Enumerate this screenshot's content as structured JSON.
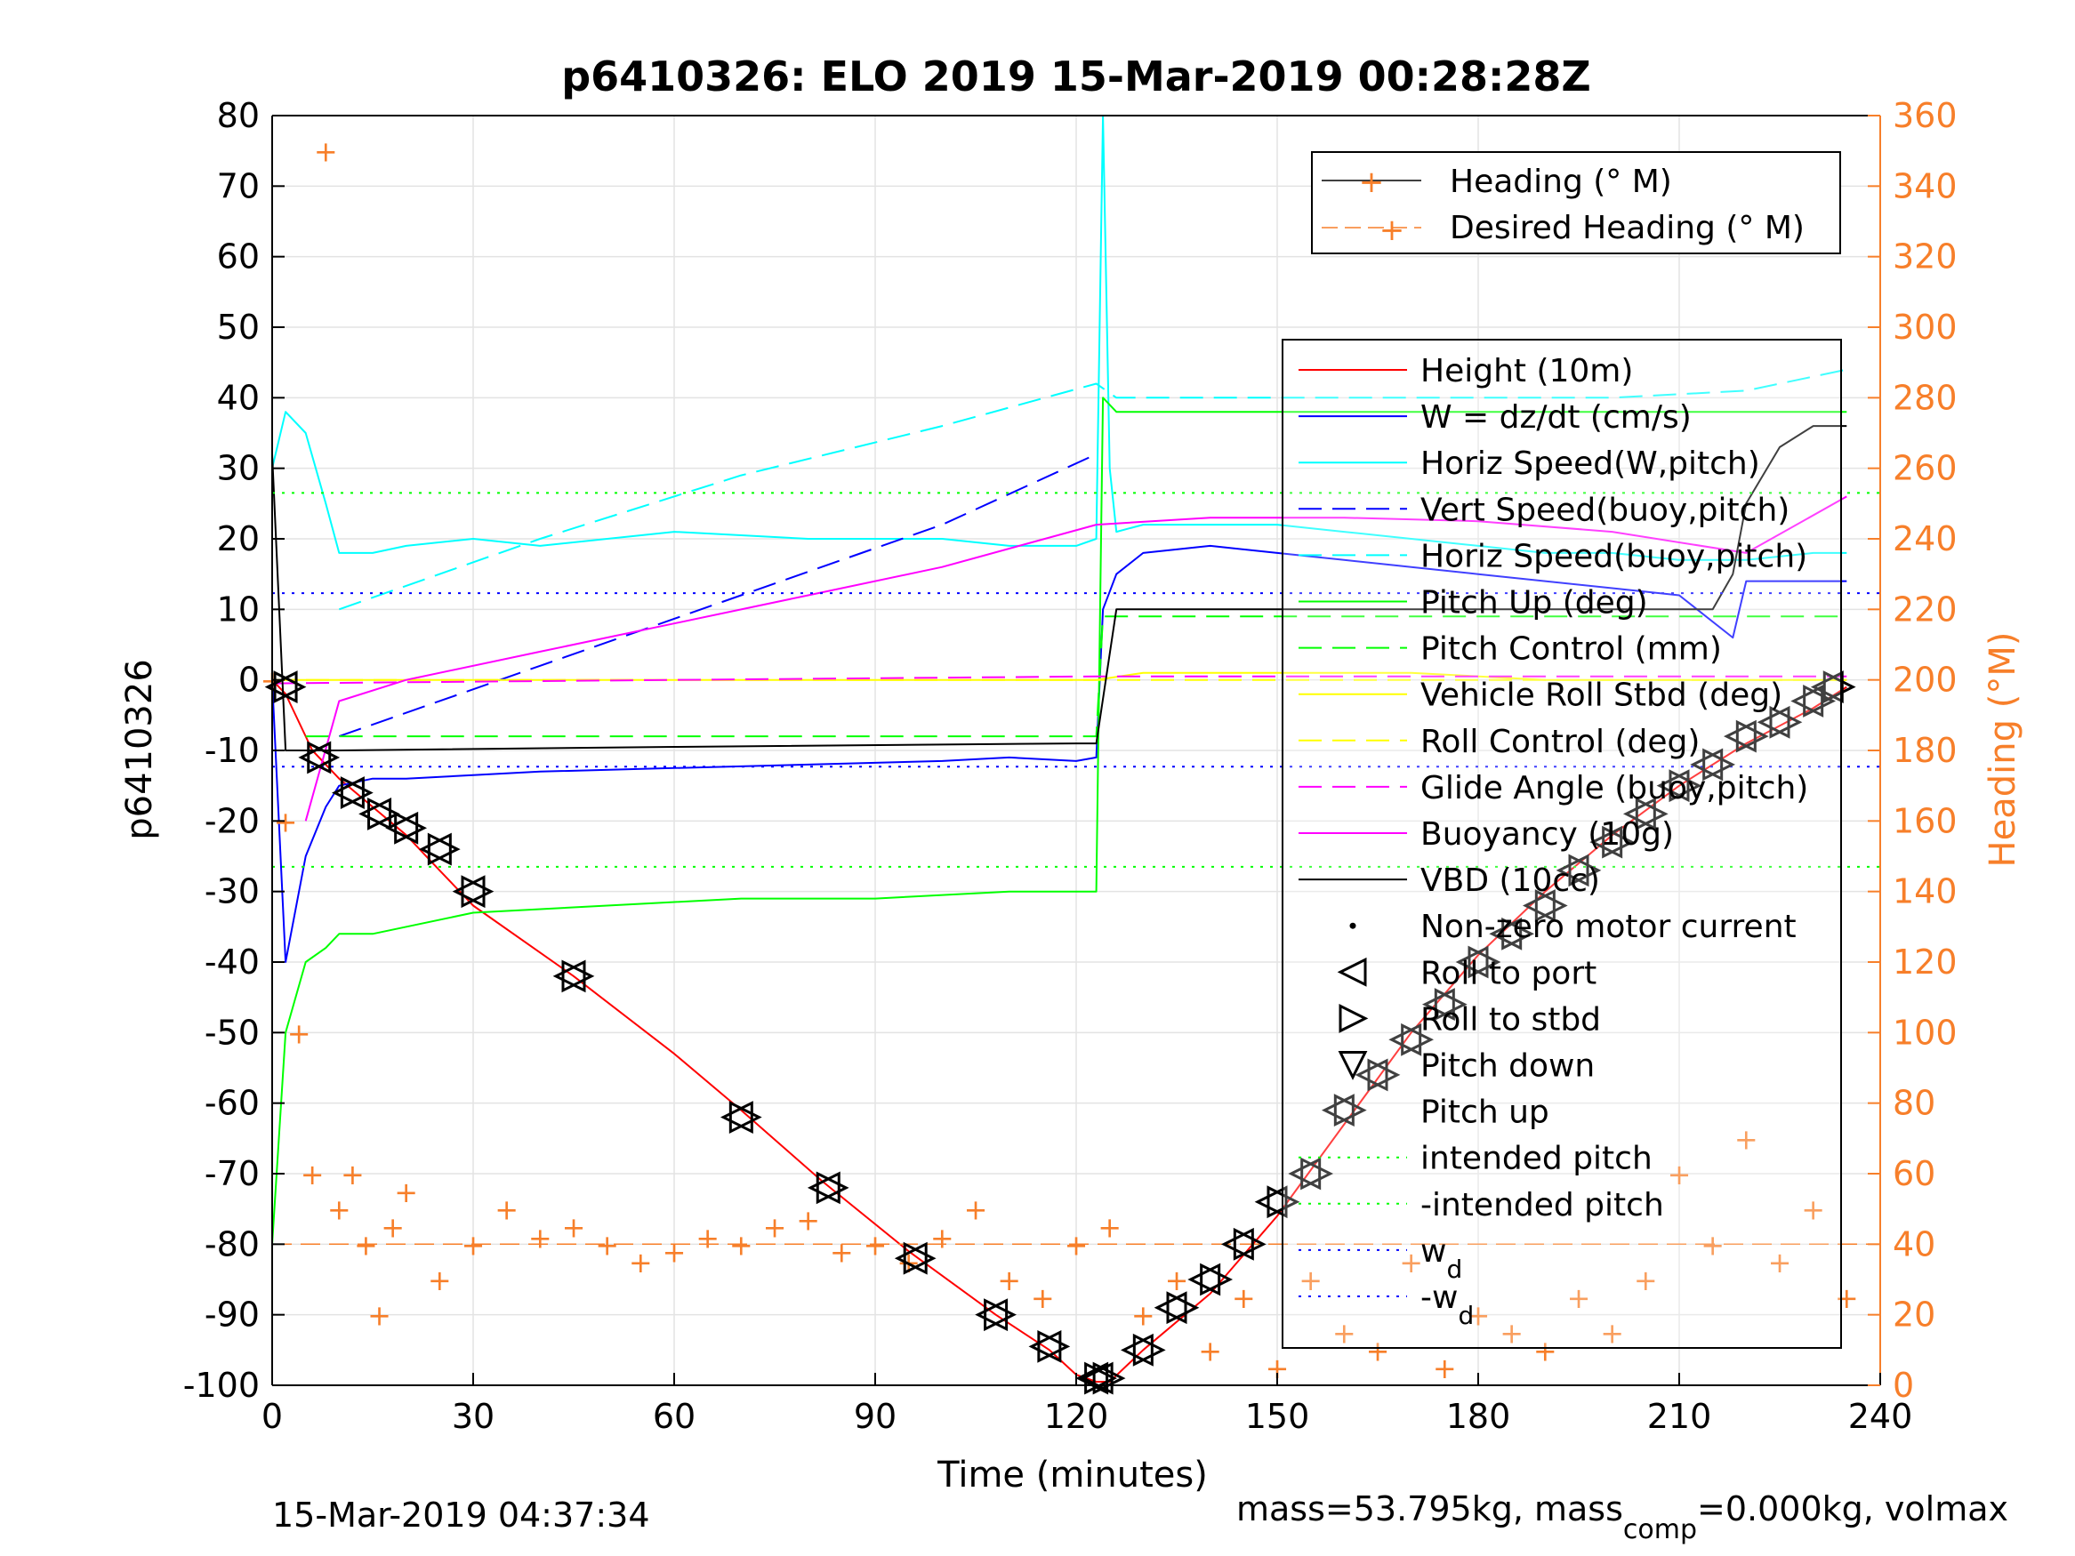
{
  "chart_data": {
    "type": "line",
    "title": "p6410326: ELO 2019 15-Mar-2019 00:28:28Z",
    "xlabel": "Time (minutes)",
    "ylabel": "p6410326",
    "ylabel_right": "Heading (°M)",
    "xlim": [
      0,
      240
    ],
    "ylim": [
      -100,
      80
    ],
    "ylim_right": [
      0,
      360
    ],
    "xticks": [
      "0",
      "30",
      "60",
      "90",
      "120",
      "150",
      "180",
      "210",
      "240"
    ],
    "yticks": [
      "80",
      "70",
      "60",
      "50",
      "40",
      "30",
      "20",
      "10",
      "0",
      "-10",
      "-20",
      "-30",
      "-40",
      "-50",
      "-60",
      "-70",
      "-80",
      "-90",
      "-100"
    ],
    "yticks_right": [
      "360",
      "340",
      "320",
      "300",
      "280",
      "260",
      "240",
      "220",
      "200",
      "180",
      "160",
      "140",
      "120",
      "100",
      "80",
      "60",
      "40",
      "20",
      "0"
    ],
    "grid": true,
    "colors": {
      "height": "#ff0000",
      "w": "#0000ff",
      "horiz_w": "#00ffff",
      "vert_buoy": "#0000ff",
      "horiz_buoy": "#00ffff",
      "pitch": "#00ff00",
      "pitch_control": "#00ff00",
      "roll": "#ffff00",
      "roll_control": "#ffff00",
      "glide": "#ff00ff",
      "buoyancy": "#ff00ff",
      "vbd": "#000000",
      "heading": "#f77f2a"
    },
    "legend_heading": {
      "placement": "top-right",
      "entries": [
        "Heading (° M)",
        "Desired Heading (° M)"
      ]
    },
    "legend_main": {
      "placement": "right",
      "entries": [
        "Height (10m)",
        "W = dz/dt (cm/s)",
        "Horiz Speed(W,pitch)",
        "Vert Speed(buoy,pitch)",
        "Horiz Speed(buoy,pitch)",
        "Pitch Up (deg)",
        "Pitch Control (mm)",
        "Vehicle Roll Stbd (deg)",
        "Roll Control (deg)",
        "Glide Angle (buoy,pitch)",
        "Buoyancy (10g)",
        "VBD (10cc)",
        "Non-zero motor current",
        "Roll to port",
        "Roll to stbd",
        "Pitch down",
        "Pitch up",
        "intended pitch",
        "-intended pitch",
        "w",
        "-w"
      ],
      "subscript": "d"
    },
    "series": [
      {
        "name": "Height (10m)",
        "x": [
          0,
          2,
          6,
          10,
          15,
          20,
          25,
          30,
          45,
          60,
          70,
          82,
          95,
          108,
          116,
          120,
          123,
          125,
          130,
          140,
          150,
          160,
          170,
          180,
          190,
          200,
          210,
          220,
          230,
          235
        ],
        "values": [
          0,
          -2,
          -10,
          -14,
          -18,
          -22,
          -27,
          -32,
          -42,
          -53,
          -61,
          -71,
          -81,
          -90,
          -95,
          -98.5,
          -99.5,
          -99.5,
          -95,
          -87,
          -76,
          -63,
          -50,
          -39,
          -30,
          -22,
          -15,
          -9,
          -4,
          -1
        ]
      },
      {
        "name": "W = dz/dt (cm/s)",
        "x": [
          0,
          2,
          5,
          8,
          10,
          15,
          20,
          30,
          40,
          60,
          80,
          100,
          110,
          120,
          123,
          124,
          126,
          130,
          140,
          150,
          160,
          170,
          180,
          190,
          200,
          210,
          218,
          220,
          230,
          235
        ],
        "values": [
          0,
          -40,
          -25,
          -18,
          -15,
          -14,
          -14,
          -13.5,
          -13,
          -12.5,
          -12,
          -11.5,
          -11,
          -11.5,
          -11,
          10,
          15,
          18,
          19,
          18,
          17,
          16,
          15,
          14,
          13,
          12,
          6,
          14,
          14,
          14
        ]
      },
      {
        "name": "Horiz Speed(W,pitch)",
        "x": [
          0,
          2,
          5,
          8,
          10,
          15,
          20,
          30,
          40,
          60,
          80,
          100,
          110,
          120,
          123,
          124,
          125,
          126,
          130,
          140,
          150,
          160,
          170,
          180,
          190,
          200,
          210,
          220,
          230,
          235
        ],
        "values": [
          30,
          38,
          35,
          25,
          18,
          18,
          19,
          20,
          19,
          21,
          20,
          20,
          19,
          19,
          20,
          80,
          30,
          21,
          22,
          22,
          22,
          21,
          20,
          19,
          18,
          18,
          17,
          17,
          18,
          18
        ]
      },
      {
        "name": "Vert Speed(buoy,pitch)",
        "x": [
          10,
          40,
          70,
          100,
          123
        ],
        "values": [
          -8,
          2,
          12,
          22,
          32
        ]
      },
      {
        "name": "Horiz Speed(buoy,pitch)",
        "x": [
          10,
          40,
          70,
          100,
          123,
          126,
          140,
          160,
          180,
          200,
          220,
          235
        ],
        "values": [
          10,
          20,
          29,
          36,
          42,
          40,
          40,
          40,
          40,
          40,
          41,
          44
        ]
      },
      {
        "name": "Pitch Up (deg)",
        "x": [
          0,
          2,
          5,
          8,
          10,
          15,
          30,
          50,
          70,
          90,
          110,
          120,
          123,
          124,
          126,
          140,
          160,
          180,
          200,
          220,
          235
        ],
        "values": [
          -80,
          -50,
          -40,
          -38,
          -36,
          -36,
          -33,
          -32,
          -31,
          -31,
          -30,
          -30,
          -30,
          40,
          38,
          38,
          38,
          38,
          38,
          38,
          38
        ]
      },
      {
        "name": "Pitch Control (mm)",
        "x": [
          5,
          40,
          80,
          123,
          124,
          235
        ],
        "values": [
          -8,
          -8,
          -8,
          -8,
          9,
          9
        ]
      },
      {
        "name": "Vehicle Roll Stbd (deg)",
        "x": [
          0,
          10,
          20,
          40,
          60,
          80,
          100,
          120,
          123,
          130,
          150,
          170,
          190,
          210,
          230,
          235
        ],
        "values": [
          0,
          0,
          0,
          0,
          0,
          0,
          0,
          0,
          0,
          1,
          1,
          1,
          0,
          0,
          0,
          0
        ]
      },
      {
        "name": "Roll Control (deg)",
        "x": [
          0,
          235
        ],
        "values": [
          0,
          0
        ]
      },
      {
        "name": "Glide Angle (buoy,pitch)",
        "x": [
          0,
          60,
          123,
          235
        ],
        "values": [
          -0.5,
          0,
          0.5,
          0.5
        ]
      },
      {
        "name": "Buoyancy (10g)",
        "x": [
          5,
          10,
          20,
          40,
          60,
          80,
          100,
          123,
          140,
          160,
          180,
          200,
          220,
          235
        ],
        "values": [
          -20,
          -3,
          0,
          4,
          8,
          12,
          16,
          22,
          23,
          23,
          22.5,
          21,
          18,
          26
        ]
      },
      {
        "name": "VBD (10cc)",
        "x": [
          0,
          2,
          10,
          60,
          120,
          123,
          126,
          180,
          215,
          218,
          220,
          225,
          230,
          235
        ],
        "values": [
          32,
          -10,
          -10,
          -9.5,
          -9,
          -9,
          10,
          10,
          10,
          15,
          25,
          33,
          36,
          36
        ]
      },
      {
        "name": "intended pitch",
        "x": [
          0,
          240
        ],
        "values": [
          26.5,
          26.5
        ]
      },
      {
        "name": "-intended pitch",
        "x": [
          0,
          240
        ],
        "values": [
          -26.5,
          -26.5
        ]
      },
      {
        "name": "w",
        "x": [
          0,
          240
        ],
        "values": [
          12.3,
          12.3
        ]
      },
      {
        "name": "-w",
        "x": [
          0,
          240
        ],
        "values": [
          -12.3,
          -12.3
        ]
      },
      {
        "name": "Heading (° M)",
        "axis": "right",
        "x": [
          0,
          2,
          4,
          6,
          8,
          10,
          12,
          14,
          16,
          18,
          20,
          25,
          30,
          35,
          40,
          45,
          50,
          55,
          60,
          65,
          70,
          75,
          80,
          85,
          90,
          95,
          100,
          105,
          110,
          115,
          120,
          125,
          130,
          135,
          140,
          145,
          150,
          155,
          160,
          165,
          170,
          175,
          180,
          185,
          190,
          195,
          200,
          205,
          210,
          215,
          220,
          225,
          230,
          235
        ],
        "values": [
          200,
          160,
          100,
          60,
          350,
          50,
          60,
          40,
          20,
          45,
          55,
          30,
          40,
          50,
          42,
          45,
          40,
          35,
          38,
          42,
          40,
          45,
          47,
          38,
          40,
          35,
          42,
          50,
          30,
          25,
          40,
          45,
          20,
          30,
          10,
          25,
          5,
          30,
          15,
          10,
          35,
          5,
          20,
          15,
          10,
          25,
          15,
          30,
          60,
          40,
          70,
          35,
          50,
          25
        ]
      },
      {
        "name": "Desired Heading (° M)",
        "axis": "right",
        "x": [
          0,
          240
        ],
        "values": [
          40,
          40
        ]
      }
    ],
    "markers": {
      "down_leg": {
        "x": [
          2,
          7,
          12,
          16,
          20,
          25,
          30,
          45,
          70,
          83,
          96,
          108,
          116,
          123
        ],
        "values": [
          -1,
          -11,
          -16,
          -19,
          -21,
          -24,
          -30,
          -42,
          -62,
          -72,
          -82,
          -90,
          -94.5,
          -99
        ]
      },
      "up_leg": {
        "x": [
          124,
          130,
          135,
          140,
          145,
          150,
          155,
          160,
          165,
          170,
          175,
          180,
          185,
          190,
          195,
          200,
          205,
          210,
          215,
          220,
          225,
          230,
          233
        ],
        "values": [
          -99,
          -95,
          -89,
          -85,
          -80,
          -74,
          -70,
          -61,
          -56,
          -51,
          -46,
          -40,
          -36,
          -32,
          -27,
          -23,
          -19,
          -15,
          -12,
          -8,
          -6,
          -3,
          -1
        ]
      }
    }
  },
  "footer": {
    "timestamp": "15-Mar-2019 04:37:34",
    "mass_prefix": "mass=53.795kg, mass",
    "mass_sub": "comp",
    "mass_suffix": "=0.000kg, volmax"
  }
}
